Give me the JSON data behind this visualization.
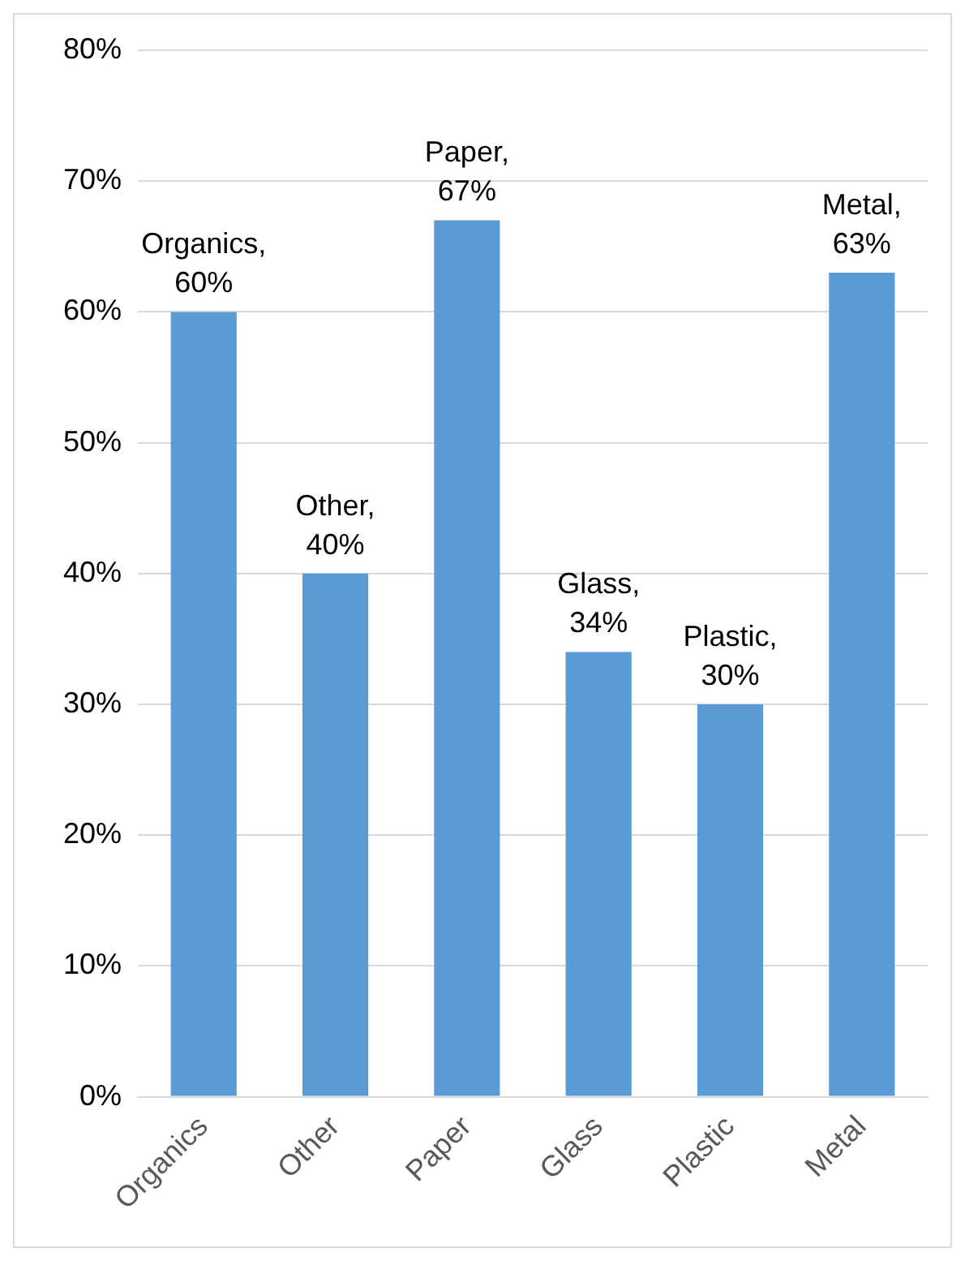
{
  "chart_data": {
    "type": "bar",
    "categories": [
      "Organics",
      "Other",
      "Paper",
      "Glass",
      "Plastic",
      "Metal"
    ],
    "values": [
      60,
      40,
      67,
      34,
      30,
      63
    ],
    "value_labels": [
      "Organics, 60%",
      "Other, 40%",
      "Paper, 67%",
      "Glass, 34%",
      "Plastic, 30%",
      "Metal, 63%"
    ],
    "color": "#5b9bd5",
    "ylim": [
      0,
      80
    ],
    "yticks": [
      {
        "value": 0,
        "label": "0%"
      },
      {
        "value": 10,
        "label": "10%"
      },
      {
        "value": 20,
        "label": "20%"
      },
      {
        "value": 30,
        "label": "30%"
      },
      {
        "value": 40,
        "label": "40%"
      },
      {
        "value": 50,
        "label": "50%"
      },
      {
        "value": 60,
        "label": "60%"
      },
      {
        "value": 70,
        "label": "70%"
      },
      {
        "value": 80,
        "label": "80%"
      }
    ],
    "grid": "y",
    "legend": false
  }
}
